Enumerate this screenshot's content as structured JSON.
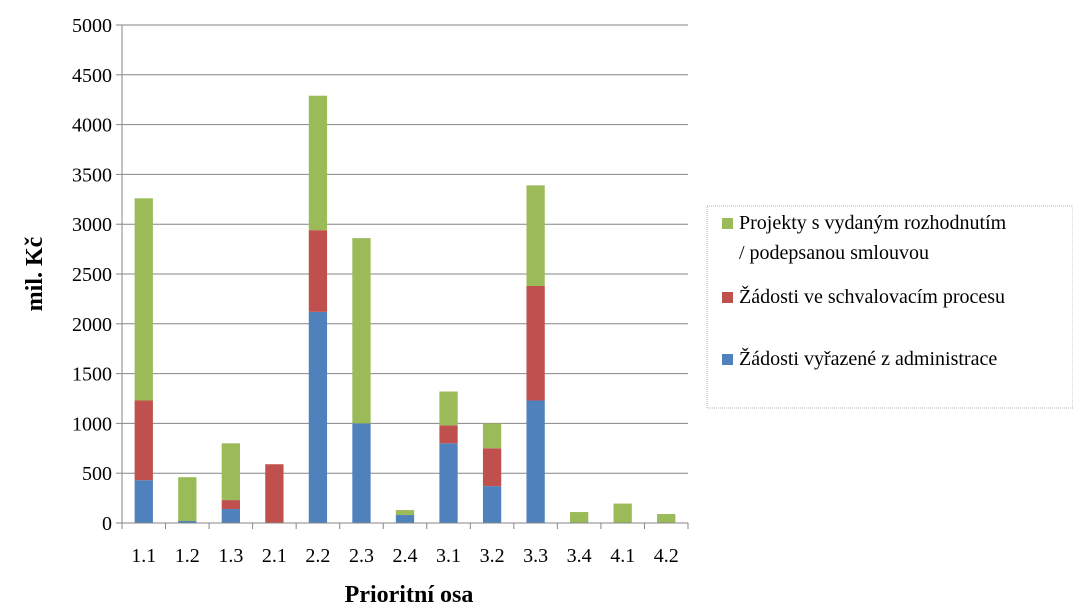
{
  "chart_data": {
    "type": "bar",
    "stacked": true,
    "xlabel": "Prioritní osa",
    "ylabel": "mil. Kč",
    "ylim": [
      0,
      5000
    ],
    "yticks": [
      0,
      500,
      1000,
      1500,
      2000,
      2500,
      3000,
      3500,
      4000,
      4500,
      5000
    ],
    "grid": true,
    "legend_position": "right",
    "categories": [
      "1.1",
      "1.2",
      "1.3",
      "2.1",
      "2.2",
      "2.3",
      "2.4",
      "3.1",
      "3.2",
      "3.3",
      "3.4",
      "4.1",
      "4.2"
    ],
    "series": [
      {
        "name": "Žádosti vyřazené z administrace",
        "color": "#4f81bd",
        "values": [
          430,
          20,
          140,
          5,
          2120,
          1000,
          80,
          800,
          370,
          1230,
          0,
          0,
          0
        ]
      },
      {
        "name": "Žádosti ve schvalovacím procesu",
        "color": "#c0504d",
        "values": [
          800,
          0,
          90,
          585,
          820,
          0,
          0,
          180,
          380,
          1150,
          0,
          0,
          0
        ]
      },
      {
        "name": "Projekty s vydaným rozhodnutím / podepsanou smlouvou",
        "color": "#9bbb59",
        "values": [
          2030,
          440,
          570,
          0,
          1350,
          1860,
          50,
          340,
          250,
          1010,
          110,
          195,
          90
        ]
      }
    ],
    "legend": {
      "order": [
        2,
        1,
        0
      ],
      "lines": [
        [
          "Projekty s vydaným rozhodnutím",
          "/ podepsanou smlouvou"
        ],
        [
          "Žádosti ve schvalovacím procesu"
        ],
        [
          "Žádosti vyřazené z administrace"
        ]
      ]
    }
  }
}
